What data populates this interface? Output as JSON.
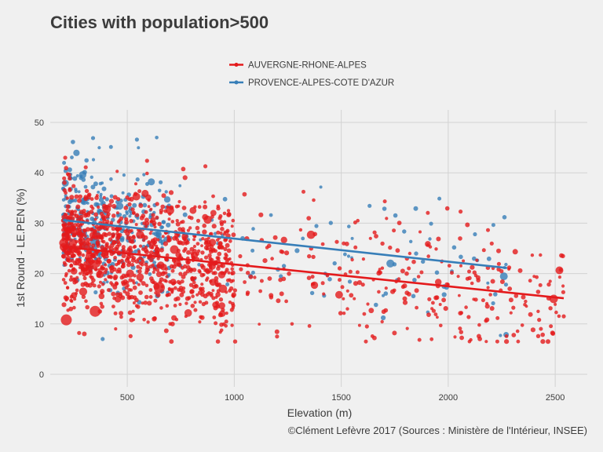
{
  "chart_data": {
    "type": "scatter",
    "title": "Cities with population>500",
    "xlabel": "Elevation (m)",
    "ylabel": "1st Round - LE.PEN (%)",
    "caption": "©Clément Lefèvre 2017 (Sources : Ministère de l'Intérieur, INSEE)",
    "xlim": [
      140,
      2650
    ],
    "ylim": [
      -2.5,
      52.5
    ],
    "x_ticks": [
      500,
      1000,
      1500,
      2000,
      2500
    ],
    "y_ticks": [
      0,
      10,
      20,
      30,
      40,
      50
    ],
    "grid": true,
    "legend_position": "top",
    "series": [
      {
        "name": "AUVERGNE-RHONE-ALPES",
        "color": "#e41a1c",
        "trend": {
          "x": [
            200,
            2540
          ],
          "y": [
            25.3,
            15.1
          ]
        },
        "summary": {
          "x_range": [
            200,
            2540
          ],
          "y_range": [
            6.5,
            43
          ],
          "center_y": 24,
          "dense_x_range": [
            200,
            1000
          ]
        },
        "notable_points": [
          {
            "x": 215,
            "y": 10.8,
            "size": "large"
          },
          {
            "x": 350,
            "y": 12.5,
            "size": "large"
          },
          {
            "x": 650,
            "y": 17.2,
            "size": "large"
          },
          {
            "x": 275,
            "y": 8.2
          },
          {
            "x": 1620,
            "y": 9.5
          },
          {
            "x": 2425,
            "y": 10.8
          },
          {
            "x": 2540,
            "y": 11.5
          },
          {
            "x": 2285,
            "y": 21.2
          },
          {
            "x": 2100,
            "y": 19.1
          },
          {
            "x": 1200,
            "y": 7.5
          },
          {
            "x": 865,
            "y": 41.3
          },
          {
            "x": 210,
            "y": 43.0
          }
        ]
      },
      {
        "name": "PROVENCE-ALPES-COTE D'AZUR",
        "color": "#377eb8",
        "trend": {
          "x": [
            200,
            2275
          ],
          "y": [
            30.6,
            21.1
          ]
        },
        "summary": {
          "x_range": [
            200,
            2280
          ],
          "y_range": [
            7,
            47
          ],
          "center_y": 29,
          "dense_x_range": [
            200,
            700
          ]
        },
        "notable_points": [
          {
            "x": 340,
            "y": 46.9
          },
          {
            "x": 545,
            "y": 46.6
          },
          {
            "x": 2270,
            "y": 17.8
          },
          {
            "x": 2125,
            "y": 27.8
          },
          {
            "x": 1420,
            "y": 15.6
          },
          {
            "x": 1540,
            "y": 18.4
          },
          {
            "x": 1920,
            "y": 29.9
          },
          {
            "x": 385,
            "y": 7.0
          },
          {
            "x": 2210,
            "y": 14.1
          }
        ]
      }
    ]
  }
}
